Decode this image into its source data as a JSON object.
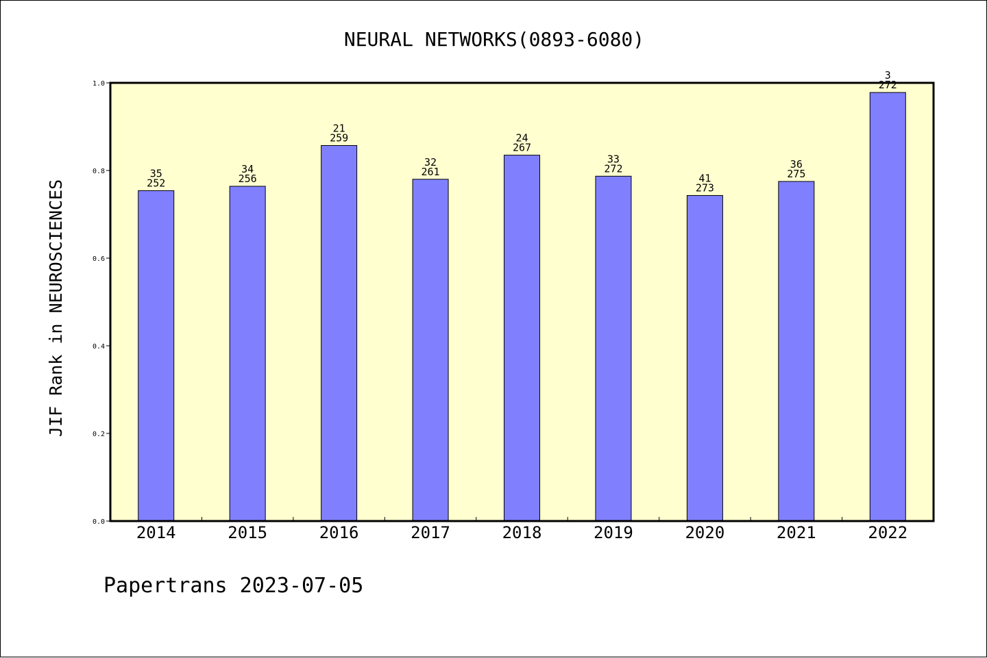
{
  "chart_data": {
    "type": "bar",
    "title": "NEURAL NETWORKS(0893-6080)",
    "ylabel": "JIF Rank in NEUROSCIENCES",
    "xlabel": "",
    "categories": [
      "2014",
      "2015",
      "2016",
      "2017",
      "2018",
      "2019",
      "2020",
      "2021",
      "2022"
    ],
    "values": [
      0.754,
      0.764,
      0.857,
      0.78,
      0.835,
      0.787,
      0.743,
      0.775,
      0.978
    ],
    "ranks": [
      "35",
      "34",
      "21",
      "32",
      "24",
      "33",
      "41",
      "36",
      "3"
    ],
    "totals": [
      "252",
      "256",
      "259",
      "261",
      "267",
      "272",
      "273",
      "275",
      "272"
    ],
    "ylim": [
      0,
      1.0
    ],
    "yticks": [
      "0.0",
      "0.2",
      "0.4",
      "0.6",
      "0.8",
      "1.0"
    ],
    "grid": false,
    "legend": "none",
    "colors": {
      "bar": "#8080ff",
      "plot_background": "#ffffd0",
      "axis": "#000000"
    }
  },
  "footer": {
    "text": "Papertrans 2023-07-05"
  }
}
